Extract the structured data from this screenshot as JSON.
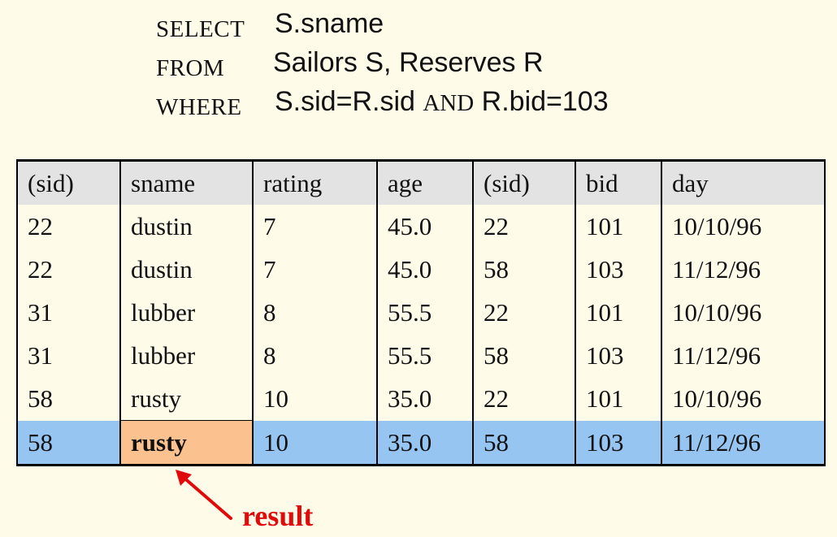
{
  "query": {
    "select_kw": "SELECT",
    "select_expr": "S.sname",
    "from_kw": "FROM",
    "from_expr": "Sailors S, Reserves R",
    "where_kw": "WHERE",
    "where_expr_1": "S.sid=R.sid",
    "where_and": "AND",
    "where_expr_2": "R.bid=103"
  },
  "table": {
    "columns": [
      "(sid)",
      "sname",
      "rating",
      "age",
      "(sid)",
      "bid",
      "day"
    ],
    "rows": [
      [
        "22",
        "dustin",
        "7",
        "45.0",
        "22",
        "101",
        "10/10/96"
      ],
      [
        "22",
        "dustin",
        "7",
        "45.0",
        "58",
        "103",
        "11/12/96"
      ],
      [
        "31",
        "lubber",
        "8",
        "55.5",
        "22",
        "101",
        "10/10/96"
      ],
      [
        "31",
        "lubber",
        "8",
        "55.5",
        "58",
        "103",
        "11/12/96"
      ],
      [
        "58",
        "rusty",
        "10",
        "35.0",
        "22",
        "101",
        "10/10/96"
      ],
      [
        "58",
        "rusty",
        "10",
        "35.0",
        "58",
        "103",
        "11/12/96"
      ]
    ]
  },
  "annotation": {
    "label": "result",
    "color": "#e10a0a"
  },
  "colors": {
    "background": "#fffbe9",
    "header_row": "#e3e3e3",
    "result_row": "#97c5f2",
    "result_cell": "#fbc18f"
  }
}
